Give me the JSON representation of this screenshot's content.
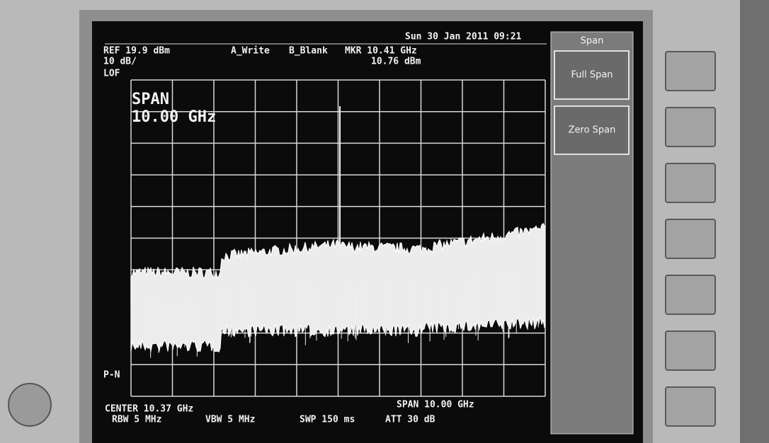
{
  "status": {
    "datetime": "Sun 30 Jan 2011 09:21",
    "ref": "REF 19.9 dBm",
    "scale": "10 dB/",
    "lof": "LOF",
    "trace_a": "A_Write",
    "trace_b": "B_Blank",
    "marker_freq": "MKR 10.41 GHz",
    "marker_level": "10.76 dBm"
  },
  "overlay": {
    "label": "SPAN",
    "value": "10.00 GHz"
  },
  "pn_label": "P-N",
  "footer": {
    "center": "CENTER 10.37 GHz",
    "span": "SPAN 10.00 GHz",
    "rbw": "RBW 5 MHz",
    "vbw": "VBW 5 MHz",
    "sweep": "SWP 150 ms",
    "att": "ATT 30 dB"
  },
  "softkeys": {
    "title": "Span",
    "keys": [
      "Full Span",
      "Zero Span"
    ]
  }
}
